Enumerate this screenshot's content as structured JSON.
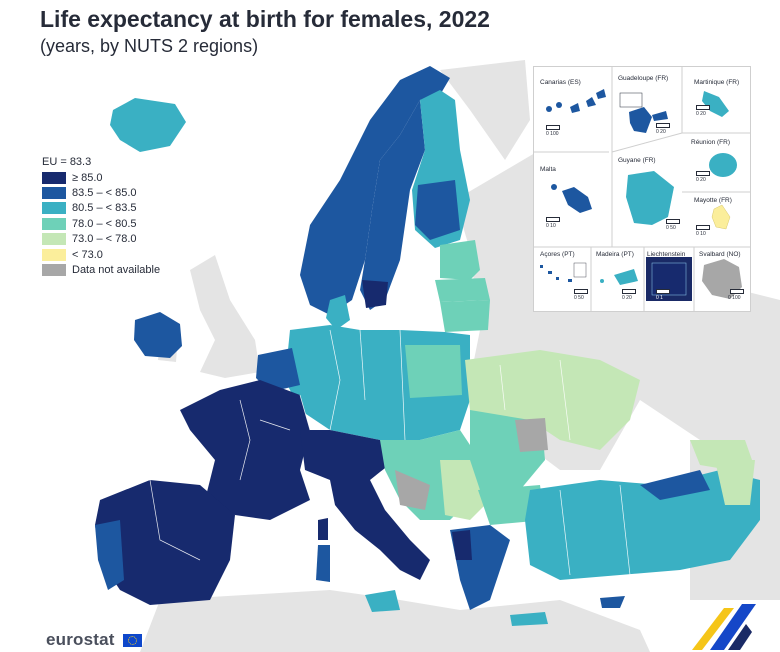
{
  "title": "Life expectancy at birth for females, 2022",
  "subtitle": "(years, by NUTS 2 regions)",
  "legend": {
    "eu": "EU = 83.3",
    "items": [
      {
        "label": "≥ 85.0",
        "color": "#172a6e"
      },
      {
        "label": "83.5 – < 85.0",
        "color": "#1d57a0"
      },
      {
        "label": "80.5 – < 83.5",
        "color": "#3ab0c3"
      },
      {
        "label": "78.0 – < 80.5",
        "color": "#6ed1b8"
      },
      {
        "label": "73.0 – < 78.0",
        "color": "#c4e7b6"
      },
      {
        "label": "< 73.0",
        "color": "#fbee9b"
      },
      {
        "label": "Data not available",
        "color": "#a7a7a7"
      }
    ]
  },
  "insets": {
    "canarias": "Canarias (ES)",
    "guadeloupe": "Guadeloupe (FR)",
    "martinique": "Martinique (FR)",
    "reunion": "Réunion (FR)",
    "malta": "Malta",
    "guyane": "Guyane (FR)",
    "mayotte": "Mayotte (FR)",
    "acores": "Açores (PT)",
    "madeira": "Madeira (PT)",
    "liechtenstein": "Liechtenstein",
    "svalbard": "Svalbard (NO)"
  },
  "scales": {
    "canarias": "0   100",
    "guadeloupe": "0   20",
    "martinique": "0   20",
    "reunion": "0   20",
    "malta": "0   10",
    "guyane": "0   50",
    "mayotte": "0   10",
    "acores": "0   50",
    "madeira": "0   20",
    "liechtenstein": "0   1",
    "svalbard": "0 100"
  },
  "colors": {
    "sea": "#ffffff",
    "non_eu_land": "#e6e6e6",
    "borders": "#ffffff"
  },
  "logo": "eurostat"
}
